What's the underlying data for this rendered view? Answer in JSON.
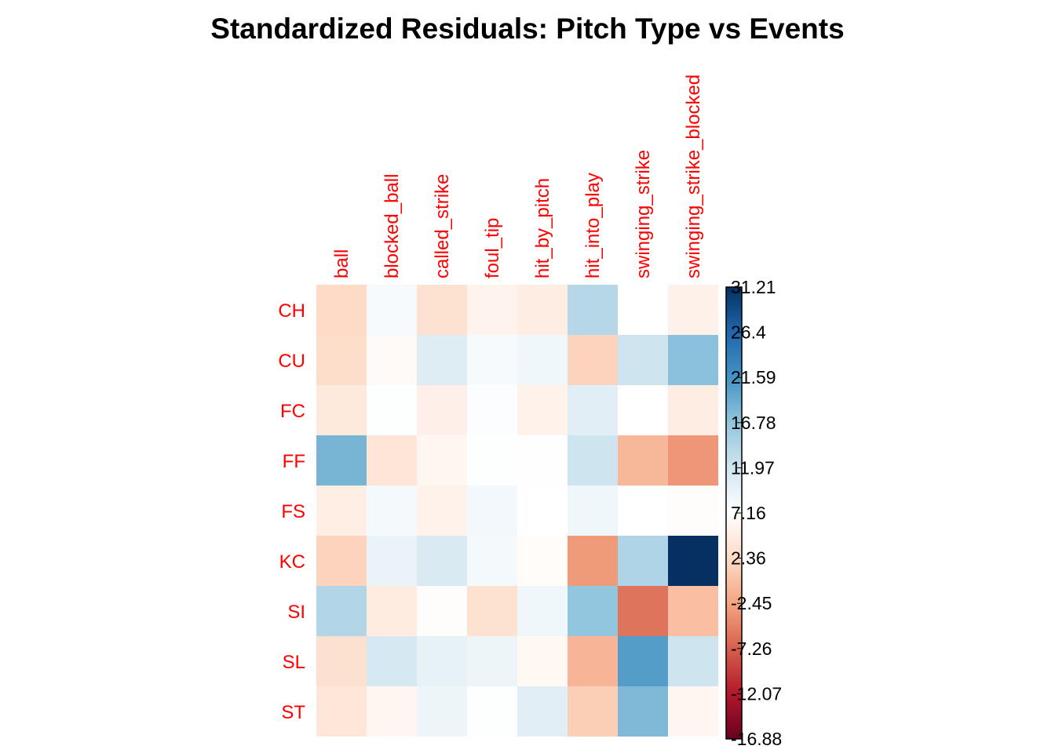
{
  "chart_data": {
    "type": "heatmap",
    "title": "Standardized Residuals: Pitch Type vs Events",
    "columns": [
      "ball",
      "blocked_ball",
      "called_strike",
      "foul_tip",
      "hit_by_pitch",
      "hit_into_play",
      "swinging_strike",
      "swinging_strike_blocked"
    ],
    "rows": [
      "CH",
      "CU",
      "FC",
      "FF",
      "FS",
      "KC",
      "SI",
      "SL",
      "ST"
    ],
    "values": [
      [
        -6.2,
        1.2,
        -5.0,
        -2.0,
        -3.2,
        9.0,
        0.0,
        -2.5
      ],
      [
        -5.8,
        -0.8,
        4.5,
        1.2,
        2.0,
        -7.2,
        6.5,
        13.0
      ],
      [
        -3.8,
        0.3,
        -2.6,
        0.4,
        -2.2,
        4.0,
        0.0,
        -3.2
      ],
      [
        14.5,
        -4.5,
        -1.6,
        0.3,
        0.2,
        6.5,
        -10.3,
        -13.8
      ],
      [
        -3.0,
        1.5,
        -2.2,
        1.8,
        0.0,
        2.0,
        0.0,
        -0.4
      ],
      [
        -7.2,
        3.0,
        5.0,
        1.5,
        -0.6,
        -13.5,
        9.5,
        31.21
      ],
      [
        9.3,
        -3.3,
        -0.4,
        -5.0,
        2.0,
        12.5,
        -16.88,
        -9.5
      ],
      [
        -5.2,
        5.5,
        3.2,
        2.5,
        -1.3,
        -10.7,
        17.5,
        6.5
      ],
      [
        -4.2,
        -1.5,
        2.5,
        0.3,
        4.0,
        -7.8,
        14.0,
        -1.5
      ]
    ],
    "colorbar_ticks": [
      "31.21",
      "26.4",
      "21.59",
      "16.78",
      "11.97",
      "7.16",
      "2.36",
      "-2.45",
      "-7.26",
      "-12.07",
      "-16.88"
    ],
    "colorbar_min": -16.88,
    "colorbar_max": 31.21,
    "colors": {
      "label": "#ff0000",
      "neg_extreme": "#67001f",
      "pos_extreme": "#053061",
      "mid": "#ffffff"
    }
  }
}
